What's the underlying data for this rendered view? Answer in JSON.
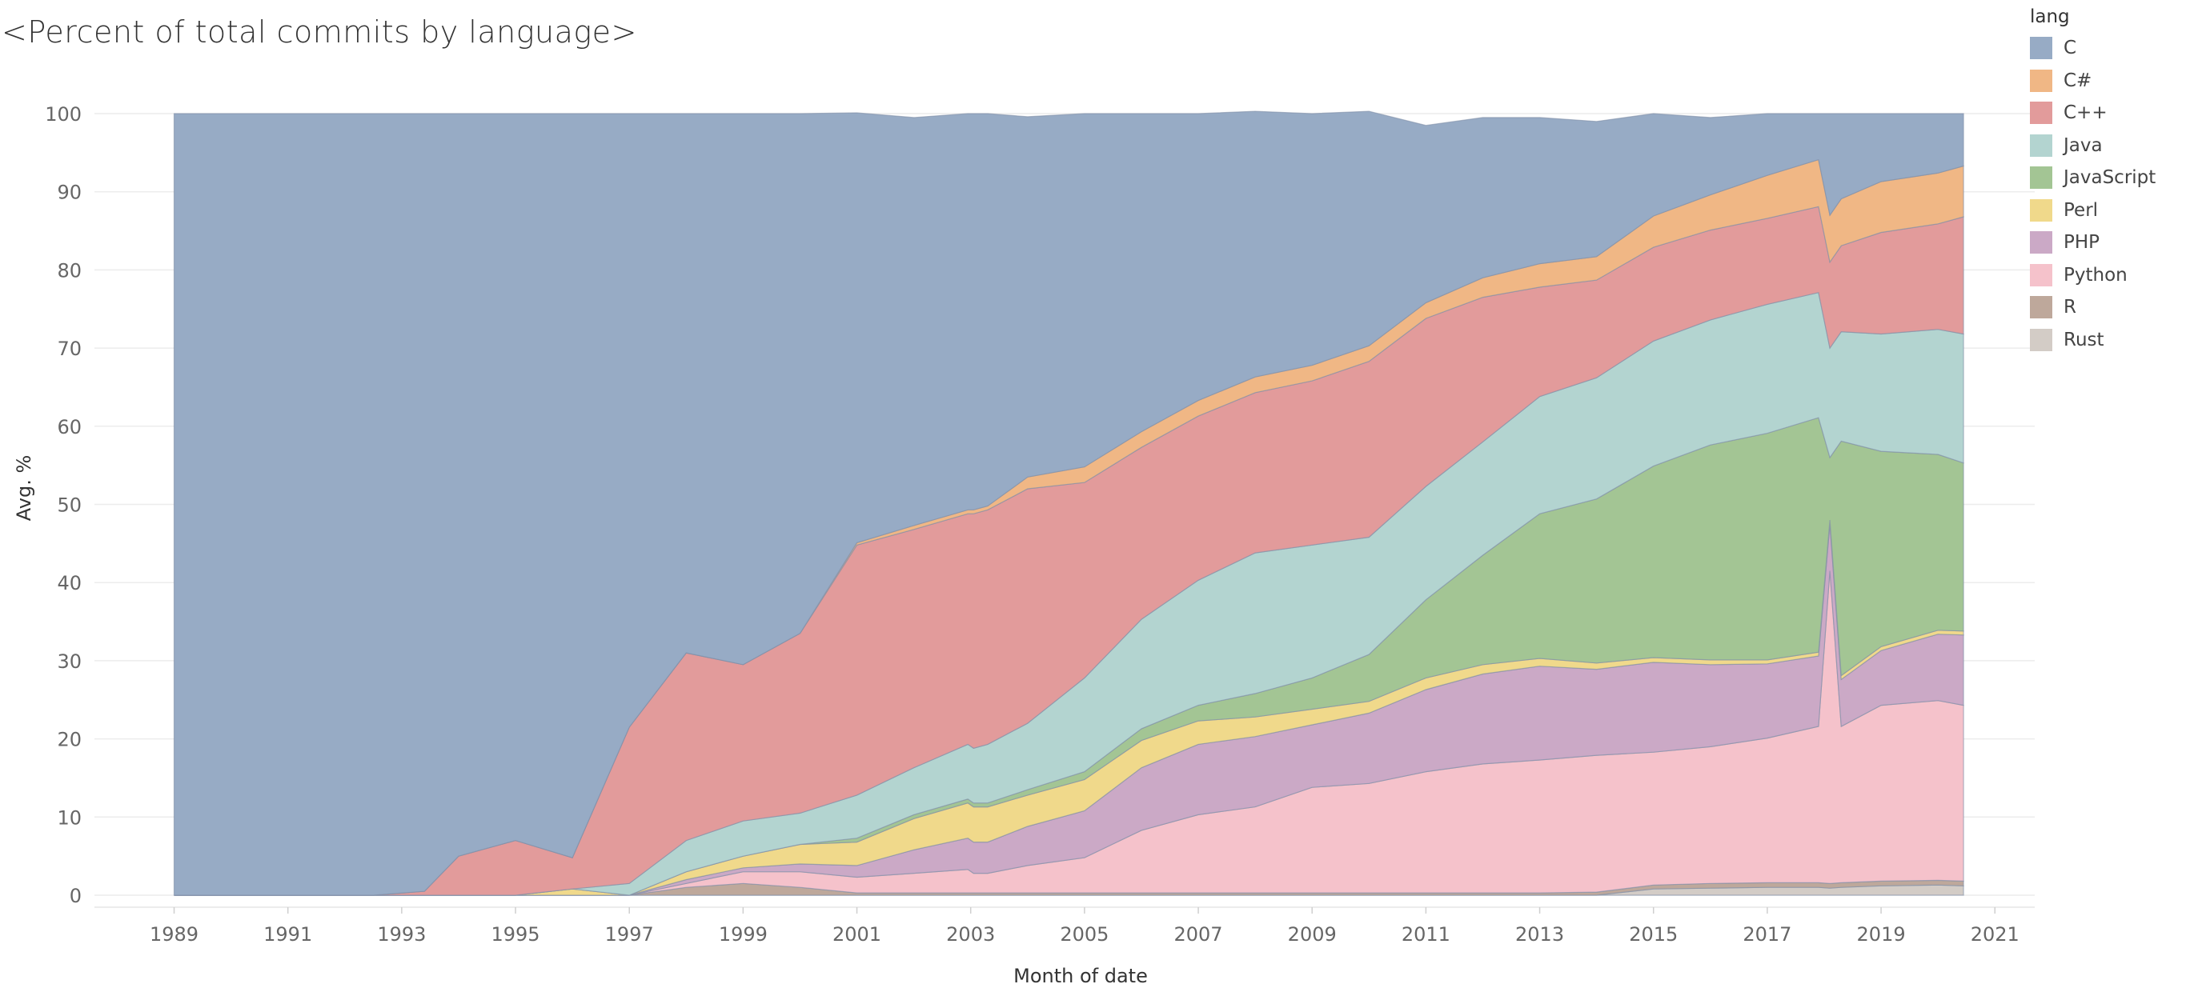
{
  "chart_data": {
    "type": "area",
    "stacked": true,
    "title": "<Percent of total commits by language>",
    "xlabel": "Month of date",
    "ylabel": "Avg. %",
    "xlim": [
      1987.6,
      2021.7
    ],
    "ylim": [
      0,
      100
    ],
    "x_ticks": [
      1989,
      1991,
      1993,
      1995,
      1997,
      1999,
      2001,
      2003,
      2005,
      2007,
      2009,
      2011,
      2013,
      2015,
      2017,
      2019,
      2021
    ],
    "y_ticks": [
      0,
      10,
      20,
      30,
      40,
      50,
      60,
      70,
      80,
      90,
      100
    ],
    "grid": "horizontal",
    "legend": {
      "title": "lang",
      "position": "right"
    },
    "x": [
      1989.0,
      1992.5,
      1993.4,
      1994.0,
      1995.0,
      1996.0,
      1997.0,
      1998.0,
      1999.0,
      2000.0,
      2001.0,
      2002.0,
      2002.95,
      2003.05,
      2003.3,
      2004.0,
      2005.0,
      2006.0,
      2007.0,
      2008.0,
      2009.0,
      2010.0,
      2011.0,
      2012.0,
      2013.0,
      2014.0,
      2015.0,
      2016.0,
      2017.0,
      2017.9,
      2018.1,
      2018.3,
      2019.0,
      2020.0,
      2020.45
    ],
    "series": [
      {
        "name": "Rust",
        "color": "#d3ccc6",
        "values": [
          0,
          0,
          0,
          0,
          0,
          0,
          0,
          0,
          0,
          0,
          0,
          0,
          0,
          0,
          0,
          0,
          0,
          0,
          0,
          0,
          0,
          0,
          0,
          0,
          0,
          0,
          0.8,
          0.9,
          1.0,
          1.0,
          0.9,
          1.0,
          1.2,
          1.3,
          1.2
        ]
      },
      {
        "name": "R",
        "color": "#bea89b",
        "values": [
          0,
          0,
          0,
          0,
          0,
          0,
          0,
          1.0,
          1.5,
          1.0,
          0.3,
          0.3,
          0.3,
          0.3,
          0.3,
          0.3,
          0.3,
          0.3,
          0.3,
          0.3,
          0.3,
          0.3,
          0.3,
          0.3,
          0.3,
          0.4,
          0.5,
          0.6,
          0.6,
          0.6,
          0.6,
          0.6,
          0.6,
          0.6,
          0.6
        ]
      },
      {
        "name": "Python",
        "color": "#f5c2cb",
        "values": [
          0,
          0,
          0,
          0,
          0,
          0,
          0,
          0.5,
          1.5,
          2.0,
          2.0,
          2.5,
          3.0,
          2.5,
          2.5,
          3.5,
          4.5,
          8.0,
          10.0,
          11.0,
          13.5,
          14.0,
          15.5,
          16.5,
          17.0,
          17.5,
          17.0,
          17.5,
          18.5,
          20.0,
          40.0,
          20.0,
          22.5,
          23.0,
          22.5
        ]
      },
      {
        "name": "PHP",
        "color": "#cba9c6",
        "values": [
          0,
          0,
          0,
          0,
          0,
          0,
          0,
          0.5,
          0.5,
          1.0,
          1.5,
          3.0,
          4.0,
          4.0,
          4.0,
          5.0,
          6.0,
          8.0,
          9.0,
          9.0,
          8.0,
          9.0,
          10.5,
          11.5,
          12.0,
          11.0,
          11.5,
          10.5,
          9.5,
          9.0,
          6.0,
          6.0,
          7.0,
          8.5,
          9.0
        ]
      },
      {
        "name": "Perl",
        "color": "#f0d98b",
        "values": [
          0,
          0,
          0,
          0,
          0,
          0.8,
          0,
          1.0,
          1.5,
          2.5,
          3.0,
          4.0,
          4.5,
          4.5,
          4.5,
          4.0,
          4.0,
          3.5,
          3.0,
          2.5,
          2.0,
          1.5,
          1.5,
          1.2,
          1.0,
          0.8,
          0.6,
          0.6,
          0.5,
          0.5,
          0.5,
          0.5,
          0.5,
          0.5,
          0.5
        ]
      },
      {
        "name": "JavaScript",
        "color": "#a3c594",
        "values": [
          0,
          0,
          0,
          0,
          0,
          0,
          0,
          0,
          0,
          0,
          0.5,
          0.5,
          0.5,
          0.5,
          0.5,
          0.7,
          1.0,
          1.5,
          2.0,
          3.0,
          4.0,
          6.0,
          10.0,
          14.0,
          18.5,
          21.0,
          24.5,
          27.5,
          29.0,
          30.0,
          8.0,
          30.0,
          25.0,
          22.5,
          21.5
        ]
      },
      {
        "name": "Java",
        "color": "#b3d4d0",
        "values": [
          0,
          0,
          0,
          0,
          0,
          0,
          1.5,
          4.0,
          4.5,
          4.0,
          5.5,
          6.0,
          7.0,
          7.0,
          7.5,
          8.5,
          12.0,
          14.0,
          16.0,
          18.0,
          17.0,
          15.0,
          14.5,
          14.5,
          15.0,
          15.5,
          16.0,
          16.0,
          16.5,
          16.0,
          14.0,
          14.0,
          15.0,
          16.0,
          16.5
        ]
      },
      {
        "name": "C++",
        "color": "#e29b9b",
        "values": [
          0,
          0,
          0.5,
          5.0,
          7.0,
          4.0,
          20.0,
          24.0,
          20.0,
          23.0,
          32.0,
          30.5,
          29.5,
          30.0,
          30.0,
          30.0,
          25.0,
          22.0,
          21.0,
          20.5,
          21.0,
          22.5,
          21.5,
          18.5,
          14.0,
          12.5,
          12.0,
          11.5,
          11.0,
          11.0,
          11.0,
          11.0,
          13.0,
          13.5,
          15.0
        ]
      },
      {
        "name": "C#",
        "color": "#f0b785",
        "values": [
          0,
          0,
          0,
          0,
          0,
          0,
          0,
          0,
          0,
          0,
          0.3,
          0.5,
          0.5,
          0.5,
          0.5,
          1.5,
          2.0,
          2.0,
          2.0,
          2.0,
          2.0,
          2.0,
          2.0,
          2.5,
          3.0,
          3.0,
          4.0,
          4.5,
          5.5,
          6.0,
          6.0,
          6.0,
          6.5,
          6.5,
          6.5
        ]
      },
      {
        "name": "C",
        "color": "#97abc5",
        "values": [
          100,
          100,
          99.5,
          95.0,
          93.0,
          95.2,
          78.5,
          69.0,
          70.5,
          66.5,
          55.0,
          52.2,
          50.7,
          50.7,
          50.2,
          46.1,
          45.2,
          40.7,
          36.7,
          34.0,
          32.2,
          30.0,
          22.7,
          20.5,
          18.7,
          17.3,
          13.1,
          9.9,
          7.9,
          5.9,
          13.0,
          10.9,
          8.7,
          7.6,
          6.7
        ]
      }
    ]
  }
}
